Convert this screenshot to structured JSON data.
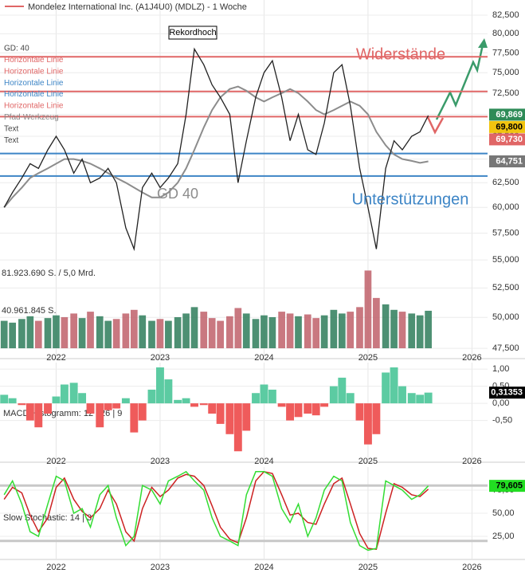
{
  "chart_data": [
    {
      "type": "line",
      "title": "Mondelez International Inc. (A1J4U0) (MDLZ) - 1 Woche",
      "log_scale": true,
      "grid": true,
      "xlim": [
        2021.46,
        2026.15
      ],
      "xticks": [
        2022,
        2023,
        2024,
        2025,
        2026
      ],
      "x": [
        2021.5,
        2021.58,
        2021.67,
        2021.75,
        2021.83,
        2021.92,
        2022,
        2022.08,
        2022.17,
        2022.25,
        2022.33,
        2022.42,
        2022.5,
        2022.58,
        2022.67,
        2022.75,
        2022.83,
        2022.92,
        2023,
        2023.08,
        2023.17,
        2023.25,
        2023.33,
        2023.42,
        2023.5,
        2023.58,
        2023.67,
        2023.75,
        2023.83,
        2023.92,
        2024,
        2024.08,
        2024.17,
        2024.25,
        2024.33,
        2024.42,
        2024.5,
        2024.58,
        2024.67,
        2024.75,
        2024.83,
        2024.92,
        2025,
        2025.08,
        2025.17,
        2025.25,
        2025.33,
        2025.42,
        2025.5,
        2025.58
      ],
      "ylim": [
        46700,
        84600
      ],
      "yticks": [
        {
          "value": 47500,
          "label": "47,500"
        },
        {
          "value": 50000,
          "label": "50,000"
        },
        {
          "value": 52500,
          "label": "52,500"
        },
        {
          "value": 55000,
          "label": "55,000"
        },
        {
          "value": 57500,
          "label": "57,500"
        },
        {
          "value": 60000,
          "label": "60,000"
        },
        {
          "value": 62500,
          "label": "62,500"
        },
        {
          "value": 65000,
          "label": "65,000"
        },
        {
          "value": 67500,
          "label": "67,500"
        },
        {
          "value": 70000,
          "label": "70,000"
        },
        {
          "value": 72500,
          "label": "72,500"
        },
        {
          "value": 75000,
          "label": "75,000"
        },
        {
          "value": 77500,
          "label": "77,500"
        },
        {
          "value": 80000,
          "label": "80,000"
        },
        {
          "value": 82500,
          "label": "82,500"
        }
      ],
      "y2lim": [
        0,
        88000000
      ],
      "y2ticks": [
        {
          "value": 81923690,
          "label": "81.923.690 S. / 5,0 Mrd."
        },
        {
          "value": 40961845,
          "label": "40.961.845 S."
        }
      ],
      "up_color": "#2e7d5b",
      "down_color": "#c0606a",
      "series": [
        {
          "name": "MDLZ",
          "color": "#222222",
          "values": [
            60000,
            61500,
            63000,
            64500,
            64000,
            66000,
            67500,
            66000,
            63500,
            65000,
            62500,
            63000,
            64000,
            62500,
            58000,
            56000,
            62000,
            63500,
            62000,
            63000,
            64500,
            70000,
            78000,
            76000,
            73500,
            72000,
            70000,
            62500,
            67000,
            72000,
            75000,
            76500,
            72000,
            67000,
            70000,
            66000,
            65500,
            69000,
            75000,
            76000,
            71000,
            64000,
            60000,
            56000,
            64000,
            67000,
            66000,
            67500,
            68000,
            69869
          ]
        },
        {
          "name": "GD: 40",
          "color": "#8c8c8c",
          "values": [
            60000,
            61000,
            62000,
            63000,
            63500,
            64000,
            64500,
            65000,
            65000,
            64800,
            64500,
            64000,
            63500,
            63000,
            62500,
            62000,
            61500,
            61000,
            61000,
            61500,
            62500,
            64000,
            66000,
            68500,
            70500,
            72000,
            73000,
            73300,
            72800,
            72000,
            71500,
            72000,
            72500,
            73000,
            72500,
            71500,
            70500,
            70000,
            70500,
            71000,
            71500,
            71000,
            70000,
            68000,
            66500,
            65500,
            65000,
            64800,
            64600,
            64751
          ]
        },
        {
          "name": "Volumen",
          "axis": "y2",
          "values": [
            30000000,
            28000000,
            32000000,
            35000000,
            30000000,
            33000000,
            36000000,
            34000000,
            38000000,
            33000000,
            40000000,
            35000000,
            30000000,
            32000000,
            38000000,
            42000000,
            36000000,
            30000000,
            32000000,
            30000000,
            34000000,
            38000000,
            45000000,
            40000000,
            33000000,
            30000000,
            35000000,
            44000000,
            38000000,
            32000000,
            36000000,
            34000000,
            40000000,
            38000000,
            35000000,
            37000000,
            33000000,
            36000000,
            42000000,
            38000000,
            40000000,
            45000000,
            85000000,
            55000000,
            48000000,
            42000000,
            40000000,
            38000000,
            36000000,
            41000000
          ]
        }
      ],
      "hlines": [
        {
          "value": 77000,
          "color": "#e06666"
        },
        {
          "value": 72700,
          "color": "#e06666"
        },
        {
          "value": 69730,
          "color": "#e06666"
        },
        {
          "value": 65600,
          "color": "#3d85c6"
        },
        {
          "value": 63200,
          "color": "#3d85c6"
        }
      ],
      "price_labels": [
        {
          "value": 69869,
          "label": "69,869",
          "color": "#2e8b57"
        },
        {
          "value": 69800,
          "label": "69,800",
          "color": "#f1c40f"
        },
        {
          "value": 69730,
          "label": "69,730",
          "color": "#e06666"
        },
        {
          "value": 64751,
          "label": "64,751",
          "color": "#777777"
        }
      ],
      "legend": [
        {
          "name": "GD: 40",
          "color": "#444444"
        },
        {
          "name": "Horizontale Linie",
          "color": "#e06666"
        },
        {
          "name": "Horizontale Linie",
          "color": "#e06666"
        },
        {
          "name": "Horizontale Linie",
          "color": "#3d85c6"
        },
        {
          "name": "Horizontale Linie",
          "color": "#3d85c6"
        },
        {
          "name": "Horizontale Linie",
          "color": "#e06666"
        },
        {
          "name": "Pfad-Werkzeug",
          "color": "#888888"
        },
        {
          "name": "Text",
          "color": "#444444"
        },
        {
          "name": "Text",
          "color": "#444444"
        }
      ],
      "annotations": [
        {
          "text": "Rekordhoch",
          "color": "#000000"
        },
        {
          "text": "Widerstände",
          "color": "#e06666"
        },
        {
          "text": "Unterstützungen",
          "color": "#3d85c6"
        },
        {
          "text": "GD 40",
          "color": "#8c8c8c"
        }
      ]
    },
    {
      "type": "bar",
      "label": "MACD Histogramm: 12 | 26 | 9",
      "xlim": [
        2021.46,
        2026.15
      ],
      "xticks": [
        2022,
        2023,
        2024,
        2025,
        2026
      ],
      "x": [
        2021.5,
        2021.58,
        2021.67,
        2021.75,
        2021.83,
        2021.92,
        2022,
        2022.08,
        2022.17,
        2022.25,
        2022.33,
        2022.42,
        2022.5,
        2022.58,
        2022.67,
        2022.75,
        2022.83,
        2022.92,
        2023,
        2023.08,
        2023.17,
        2023.25,
        2023.33,
        2023.42,
        2023.5,
        2023.58,
        2023.67,
        2023.75,
        2023.83,
        2023.92,
        2024,
        2024.08,
        2024.17,
        2024.25,
        2024.33,
        2024.42,
        2024.5,
        2024.58,
        2024.67,
        2024.75,
        2024.83,
        2024.92,
        2025,
        2025.08,
        2025.17,
        2025.25,
        2025.33,
        2025.42,
        2025.5,
        2025.58
      ],
      "ylim": [
        -1.72,
        1.19
      ],
      "yticks": [
        {
          "value": 1,
          "label": "1,00"
        },
        {
          "value": 0.5,
          "label": "0,50"
        },
        {
          "value": 0,
          "label": "0,00"
        },
        {
          "value": -0.5,
          "label": "-0,50"
        }
      ],
      "pos_color": "#5ccba2",
      "neg_color": "#ef5b5b",
      "values": [
        0.25,
        0.15,
        -0.05,
        -0.5,
        -0.7,
        -0.3,
        0.2,
        0.55,
        0.6,
        0.3,
        -0.3,
        -0.7,
        -0.2,
        -0.15,
        0.15,
        -0.85,
        -0.5,
        0.4,
        1.05,
        0.7,
        0.1,
        0.15,
        -0.1,
        -0.05,
        -0.3,
        -0.6,
        -0.9,
        -1.4,
        -0.8,
        0.3,
        0.55,
        0.4,
        -0.1,
        -0.5,
        -0.4,
        -0.3,
        -0.35,
        -0.1,
        0.5,
        0.75,
        0.3,
        -0.5,
        -1.2,
        -0.9,
        0.9,
        1.05,
        0.5,
        0.3,
        0.25,
        0.31353
      ],
      "last_label": {
        "value": 0.31353,
        "label": "0,31353"
      }
    },
    {
      "type": "line",
      "label": "Slow Stochastic: 14 | 3",
      "xlim": [
        2021.46,
        2026.15
      ],
      "xticks": [
        2022,
        2023,
        2024,
        2025,
        2026
      ],
      "x": [
        2021.5,
        2021.58,
        2021.67,
        2021.75,
        2021.83,
        2021.92,
        2022,
        2022.08,
        2022.17,
        2022.25,
        2022.33,
        2022.42,
        2022.5,
        2022.58,
        2022.67,
        2022.75,
        2022.83,
        2022.92,
        2023,
        2023.08,
        2023.17,
        2023.25,
        2023.33,
        2023.42,
        2023.5,
        2023.58,
        2023.67,
        2023.75,
        2023.83,
        2023.92,
        2024,
        2024.08,
        2024.17,
        2024.25,
        2024.33,
        2024.42,
        2024.5,
        2024.58,
        2024.67,
        2024.75,
        2024.83,
        2024.92,
        2025,
        2025.08,
        2025.17,
        2025.25,
        2025.33,
        2025.42,
        2025.5,
        2025.58
      ],
      "ylim": [
        0,
        100
      ],
      "yticks": [
        {
          "value": 25,
          "label": "25,00"
        },
        {
          "value": 50,
          "label": "50,00"
        },
        {
          "value": 75,
          "label": "75,00"
        }
      ],
      "levels": [
        80,
        20
      ],
      "series": [
        {
          "name": "%K",
          "color": "#33dd33",
          "values": [
            70,
            85,
            60,
            30,
            25,
            60,
            90,
            85,
            50,
            55,
            35,
            70,
            80,
            45,
            15,
            25,
            80,
            75,
            60,
            85,
            90,
            95,
            85,
            75,
            45,
            25,
            20,
            15,
            70,
            95,
            95,
            90,
            55,
            40,
            60,
            25,
            45,
            75,
            90,
            85,
            40,
            15,
            10,
            12,
            85,
            80,
            75,
            65,
            70,
            79.605
          ]
        },
        {
          "name": "%D",
          "color": "#cc2222",
          "values": [
            65,
            78,
            72,
            48,
            30,
            45,
            78,
            88,
            65,
            52,
            45,
            55,
            75,
            60,
            30,
            20,
            55,
            78,
            68,
            75,
            88,
            92,
            90,
            80,
            58,
            35,
            22,
            18,
            45,
            85,
            95,
            93,
            70,
            48,
            50,
            40,
            38,
            60,
            82,
            88,
            60,
            28,
            12,
            11,
            50,
            82,
            78,
            70,
            68,
            76
          ]
        }
      ],
      "last_label": {
        "value": 79.605,
        "label": "79,605"
      }
    }
  ]
}
